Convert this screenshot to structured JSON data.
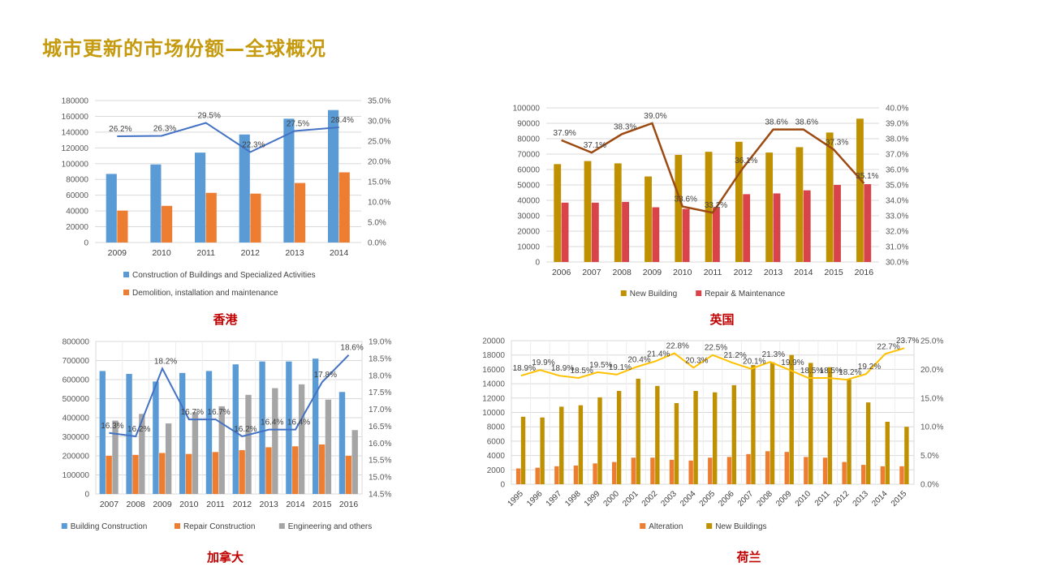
{
  "page": {
    "title": "城市更新的市场份额—全球概况"
  },
  "colors": {
    "blue": "#5B9BD5",
    "orange": "#ED7D31",
    "gray": "#A5A5A5",
    "gold": "#BF9000",
    "red": "#D9434A",
    "brown": "#9C4A12",
    "yellow": "#FFC000",
    "line_blue": "#4472C4"
  },
  "chart_data": [
    {
      "id": "hongkong",
      "caption": "香港",
      "type": "bar",
      "categories": [
        "2009",
        "2010",
        "2011",
        "2012",
        "2013",
        "2014"
      ],
      "series": [
        {
          "name": "Construction of Buildings and Specialized Activities",
          "color": "blue",
          "values": [
            87000,
            99000,
            114000,
            137000,
            157000,
            168000
          ]
        },
        {
          "name": "Demolition, installation and maintenance",
          "color": "orange",
          "values": [
            40500,
            46500,
            63000,
            62000,
            75500,
            89000
          ]
        }
      ],
      "line": {
        "color": "line_blue",
        "values": [
          0.262,
          0.263,
          0.295,
          0.223,
          0.275,
          0.284
        ],
        "labels": [
          "26.2%",
          "26.3%",
          "29.5%",
          "22.3%",
          "27.5%",
          "28.4%"
        ]
      },
      "ylim": [
        0,
        180000
      ],
      "yticks": [
        0,
        20000,
        40000,
        60000,
        80000,
        100000,
        120000,
        140000,
        160000,
        180000
      ],
      "y2lim": [
        0,
        0.35
      ],
      "y2ticks": [
        "0.0%",
        "5.0%",
        "10.0%",
        "15.0%",
        "20.0%",
        "25.0%",
        "30.0%",
        "35.0%"
      ],
      "legend_layout": "stacked",
      "x_rotate": false
    },
    {
      "id": "uk",
      "caption": "英国",
      "type": "bar",
      "categories": [
        "2006",
        "2007",
        "2008",
        "2009",
        "2010",
        "2011",
        "2012",
        "2013",
        "2014",
        "2015",
        "2016"
      ],
      "series": [
        {
          "name": "New Building",
          "color": "gold",
          "values": [
            63500,
            65500,
            64000,
            55500,
            69500,
            71500,
            78000,
            71000,
            74500,
            84000,
            93000
          ]
        },
        {
          "name": "Repair & Maintenance",
          "color": "red",
          "values": [
            38500,
            38500,
            39000,
            35500,
            34500,
            35500,
            44000,
            44500,
            46500,
            50000,
            50500
          ]
        }
      ],
      "line": {
        "color": "brown",
        "values": [
          0.379,
          0.371,
          0.383,
          0.39,
          0.336,
          0.332,
          0.361,
          0.386,
          0.386,
          0.373,
          0.351
        ],
        "labels": [
          "37.9%",
          "37.1%",
          "38.3%",
          "39.0%",
          "33.6%",
          "33.2%",
          "36.1%",
          "38.6%",
          "38.6%",
          "37.3%",
          "35.1%"
        ]
      },
      "ylim": [
        0,
        100000
      ],
      "yticks": [
        0,
        10000,
        20000,
        30000,
        40000,
        50000,
        60000,
        70000,
        80000,
        90000,
        100000
      ],
      "y2lim": [
        0.3,
        0.4
      ],
      "y2ticks": [
        "30.0%",
        "31.0%",
        "32.0%",
        "33.0%",
        "34.0%",
        "35.0%",
        "36.0%",
        "37.0%",
        "38.0%",
        "39.0%",
        "40.0%"
      ],
      "legend_layout": "row",
      "x_rotate": false
    },
    {
      "id": "canada",
      "caption": "加拿大",
      "type": "bar",
      "categories": [
        "2007",
        "2008",
        "2009",
        "2010",
        "2011",
        "2012",
        "2013",
        "2014",
        "2015",
        "2016"
      ],
      "series": [
        {
          "name": "Building Construction",
          "color": "blue",
          "values": [
            645000,
            630000,
            590000,
            635000,
            645000,
            680000,
            695000,
            695000,
            710000,
            535000
          ]
        },
        {
          "name": "Repair Construction",
          "color": "orange",
          "values": [
            200000,
            205000,
            215000,
            210000,
            220000,
            230000,
            245000,
            250000,
            260000,
            200000
          ]
        },
        {
          "name": "Engineering and others",
          "color": "gray",
          "values": [
            385000,
            420000,
            370000,
            430000,
            460000,
            520000,
            555000,
            575000,
            495000,
            335000
          ]
        }
      ],
      "line": {
        "color": "line_blue",
        "values": [
          0.163,
          0.162,
          0.182,
          0.167,
          0.167,
          0.162,
          0.164,
          0.164,
          0.178,
          0.186
        ],
        "labels": [
          "16.3%",
          "16.2%",
          "18.2%",
          "16.7%",
          "16.7%",
          "16.2%",
          "16.4%",
          "16.4%",
          "17.8%",
          "18.6%"
        ]
      },
      "ylim": [
        0,
        800000
      ],
      "yticks": [
        0,
        100000,
        200000,
        300000,
        400000,
        500000,
        600000,
        700000,
        800000
      ],
      "y2lim": [
        0.145,
        0.19
      ],
      "y2ticks": [
        "14.5%",
        "15.0%",
        "15.5%",
        "16.0%",
        "16.5%",
        "17.0%",
        "17.5%",
        "18.0%",
        "18.5%",
        "19.0%"
      ],
      "legend_layout": "row",
      "x_rotate": false
    },
    {
      "id": "netherlands",
      "caption": "荷兰",
      "type": "bar",
      "categories": [
        "1995",
        "1996",
        "1997",
        "1998",
        "1999",
        "2000",
        "2001",
        "2002",
        "2003",
        "2004",
        "2005",
        "2006",
        "2007",
        "2008",
        "2009",
        "2010",
        "2011",
        "2012",
        "2013",
        "2014",
        "2015"
      ],
      "series": [
        {
          "name": "Alteration",
          "color": "orange",
          "values": [
            2200,
            2300,
            2500,
            2600,
            2900,
            3100,
            3700,
            3700,
            3400,
            3300,
            3700,
            3800,
            4200,
            4600,
            4500,
            3800,
            3700,
            3100,
            2700,
            2500,
            2500
          ]
        },
        {
          "name": "New Buildings",
          "color": "gold",
          "values": [
            9400,
            9300,
            10800,
            11000,
            12100,
            13000,
            14700,
            13700,
            11300,
            13000,
            12800,
            13800,
            16600,
            17000,
            18000,
            16900,
            16300,
            14600,
            11400,
            8700,
            8000
          ]
        }
      ],
      "line": {
        "color": "yellow",
        "values": [
          0.189,
          0.199,
          0.189,
          0.185,
          0.195,
          0.191,
          0.204,
          0.214,
          0.228,
          0.203,
          0.225,
          0.212,
          0.201,
          0.213,
          0.199,
          0.185,
          0.185,
          0.182,
          0.192,
          0.227,
          0.237
        ],
        "labels": [
          "18.9%",
          "19.9%",
          "18.9%",
          "18.5%",
          "19.5%",
          "19.1%",
          "20.4%",
          "21.4%",
          "22.8%",
          "20.3%",
          "22.5%",
          "21.2%",
          "20.1%",
          "21.3%",
          "19.9%",
          "18.5%",
          "18.5%",
          "18.2%",
          "19.2%",
          "22.7%",
          "23.7%"
        ]
      },
      "ylim": [
        0,
        20000
      ],
      "yticks": [
        0,
        2000,
        4000,
        6000,
        8000,
        10000,
        12000,
        14000,
        16000,
        18000,
        20000
      ],
      "y2lim": [
        0,
        0.25
      ],
      "y2ticks": [
        "0.0%",
        "5.0%",
        "10.0%",
        "15.0%",
        "20.0%",
        "25.0%"
      ],
      "legend_layout": "row",
      "x_rotate": true
    }
  ]
}
